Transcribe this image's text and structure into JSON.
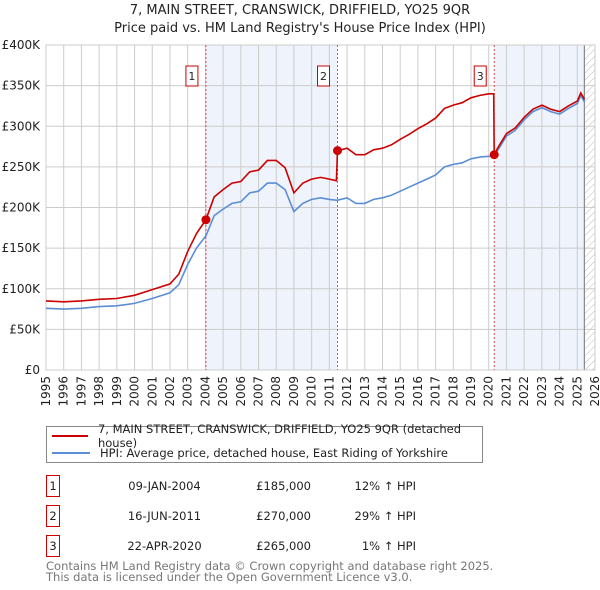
{
  "chart_data": {
    "type": "line",
    "title": "7, MAIN STREET, CRANSWICK, DRIFFIELD, YO25 9QR",
    "subtitle": "Price paid vs. HM Land Registry's House Price Index (HPI)",
    "xlim": [
      1995,
      2026
    ],
    "ylim": [
      0,
      400000
    ],
    "x_ticks": [
      "1995",
      "1996",
      "1997",
      "1998",
      "1999",
      "2000",
      "2001",
      "2002",
      "2003",
      "2004",
      "2005",
      "2006",
      "2007",
      "2008",
      "2009",
      "2010",
      "2011",
      "2012",
      "2013",
      "2014",
      "2015",
      "2016",
      "2017",
      "2018",
      "2019",
      "2020",
      "2021",
      "2022",
      "2023",
      "2024",
      "2025",
      "2026"
    ],
    "y_ticks": [
      {
        "value": 0,
        "label": "£0"
      },
      {
        "value": 50000,
        "label": "£50K"
      },
      {
        "value": 100000,
        "label": "£100K"
      },
      {
        "value": 150000,
        "label": "£150K"
      },
      {
        "value": 200000,
        "label": "£200K"
      },
      {
        "value": 250000,
        "label": "£250K"
      },
      {
        "value": 300000,
        "label": "£300K"
      },
      {
        "value": 350000,
        "label": "£350K"
      },
      {
        "value": 400000,
        "label": "£400K"
      }
    ],
    "grid": true,
    "x": [
      1995,
      1996,
      1997,
      1998,
      1999,
      2000,
      2001,
      2002,
      2002.5,
      2003,
      2003.5,
      2004.03,
      2004.5,
      2005,
      2005.5,
      2006,
      2006.5,
      2007,
      2007.5,
      2008,
      2008.5,
      2009,
      2009.5,
      2010,
      2010.5,
      2011,
      2011.4,
      2011.46,
      2012,
      2012.5,
      2013,
      2013.5,
      2014,
      2014.5,
      2015,
      2015.5,
      2016,
      2016.5,
      2017,
      2017.5,
      2018,
      2018.5,
      2019,
      2019.5,
      2020,
      2020.28,
      2020.31,
      2020.5,
      2021,
      2021.5,
      2022,
      2022.5,
      2023,
      2023.5,
      2024,
      2024.5,
      2025,
      2025.2,
      2025.4
    ],
    "series": [
      {
        "name": "7, MAIN STREET, CRANSWICK, DRIFFIELD, YO25 9QR (detached house)",
        "color": "#cc0000",
        "values": [
          85000,
          84000,
          85000,
          87000,
          88000,
          92000,
          99000,
          106000,
          118000,
          146000,
          168000,
          185000,
          213000,
          222000,
          230000,
          232000,
          244000,
          246000,
          258000,
          258000,
          249000,
          218000,
          230000,
          235000,
          237000,
          235000,
          233000,
          270000,
          273000,
          265000,
          265000,
          271000,
          273000,
          277000,
          284000,
          290000,
          297000,
          303000,
          310000,
          322000,
          326000,
          329000,
          335000,
          338000,
          340000,
          340000,
          265000,
          273000,
          291000,
          298000,
          311000,
          321000,
          326000,
          321000,
          318000,
          325000,
          331000,
          341000,
          333000
        ]
      },
      {
        "name": "HPI: Average price, detached house, East Riding of Yorkshire",
        "color": "#5b8ed6",
        "values": [
          76000,
          75000,
          76000,
          78000,
          79000,
          82000,
          88000,
          95000,
          105000,
          130000,
          150000,
          165000,
          190000,
          198000,
          205000,
          207000,
          218000,
          220000,
          230000,
          230000,
          222000,
          195000,
          205000,
          210000,
          212000,
          210000,
          209000,
          209000,
          212000,
          205000,
          205000,
          210000,
          212000,
          215000,
          220000,
          225000,
          230000,
          235000,
          240000,
          250000,
          253000,
          255000,
          260000,
          262000,
          263000,
          263000,
          262000,
          270000,
          288000,
          295000,
          308000,
          318000,
          323000,
          318000,
          315000,
          322000,
          328000,
          338000,
          330000
        ]
      }
    ],
    "sales": [
      {
        "label": "1",
        "date": "09-JAN-2004",
        "x": 2004.03,
        "price": 185000,
        "price_label": "£185,000",
        "hpi": "12% ↑ HPI"
      },
      {
        "label": "2",
        "date": "16-JUN-2011",
        "x": 2011.46,
        "price": 270000,
        "price_label": "£270,000",
        "hpi": "29% ↑ HPI"
      },
      {
        "label": "3",
        "date": "22-APR-2020",
        "x": 2020.31,
        "price": 265000,
        "price_label": "£265,000",
        "hpi": "1% ↑ HPI"
      }
    ],
    "shaded_ranges": [
      [
        2004.03,
        2011.46
      ],
      [
        2020.31,
        2025.4
      ]
    ],
    "forecast_from": 2025.4,
    "legend_position": "bottom"
  },
  "footer": [
    "Contains HM Land Registry data © Crown copyright and database right 2025.",
    "This data is licensed under the Open Government Licence v3.0."
  ]
}
